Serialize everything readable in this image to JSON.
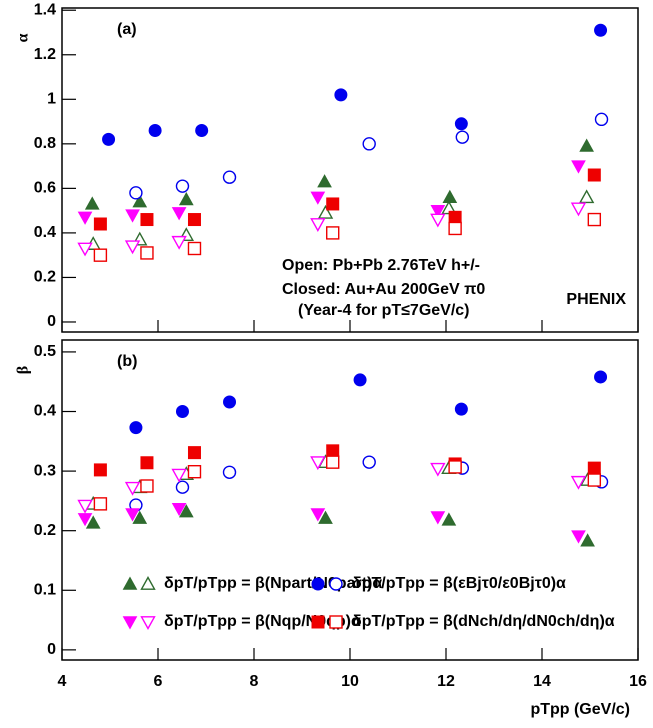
{
  "chart_data": [
    {
      "type": "scatter",
      "panel_label": "(a)",
      "ylabel": "α",
      "xlim": [
        4,
        16
      ],
      "xticks": [
        4,
        6,
        8,
        10,
        12,
        14,
        16
      ],
      "ylim": [
        -0.045,
        1.41
      ],
      "yticks": [
        0,
        0.2,
        0.4,
        0.6,
        0.8,
        1,
        1.2,
        1.4
      ],
      "annotations": [
        "Open: Pb+Pb 2.76TeV h+/-",
        "Closed: Au+Au 200GeV π0",
        "(Year-4 for pT≤7GeV/c)"
      ],
      "watermark": "PHENIX",
      "watermark_color": "#ee0000",
      "series": [
        {
          "color": "#2f6b2f",
          "marker": "triangle-up",
          "x": [
            4.63,
            5.62,
            6.59,
            9.47,
            12.08,
            14.93
          ],
          "values": [
            0.53,
            0.54,
            0.55,
            0.63,
            0.56,
            0.79
          ],
          "open_x": [
            4.65,
            5.62,
            6.59,
            9.49,
            12.06,
            14.93
          ],
          "open_values": [
            0.35,
            0.37,
            0.39,
            0.49,
            0.51,
            0.56
          ]
        },
        {
          "color": "#0000ee",
          "marker": "circle",
          "x": [
            4.97,
            5.94,
            6.91,
            9.81,
            12.32,
            15.22
          ],
          "values": [
            0.82,
            0.86,
            0.86,
            1.02,
            0.89,
            1.31
          ],
          "open_x": [
            5.54,
            6.51,
            7.49,
            10.4,
            12.34,
            15.24
          ],
          "open_values": [
            0.58,
            0.61,
            0.65,
            0.8,
            0.83,
            0.91
          ]
        },
        {
          "color": "#ff00ff",
          "marker": "triangle-down",
          "x": [
            4.48,
            5.47,
            6.44,
            9.33,
            11.83,
            14.76
          ],
          "values": [
            0.47,
            0.48,
            0.49,
            0.56,
            0.5,
            0.7
          ],
          "open_x": [
            4.48,
            5.47,
            6.44,
            9.33,
            11.83,
            14.76
          ],
          "open_values": [
            0.33,
            0.34,
            0.36,
            0.44,
            0.46,
            0.51
          ]
        },
        {
          "color": "#ee0000",
          "marker": "square",
          "x": [
            4.8,
            5.77,
            6.76,
            9.64,
            12.19,
            15.09
          ],
          "values": [
            0.44,
            0.46,
            0.46,
            0.53,
            0.47,
            0.66
          ],
          "open_x": [
            4.8,
            5.77,
            6.76,
            9.64,
            12.19,
            15.09
          ],
          "open_values": [
            0.3,
            0.31,
            0.33,
            0.4,
            0.42,
            0.46
          ]
        }
      ]
    },
    {
      "type": "scatter",
      "panel_label": "(b)",
      "ylabel": "β",
      "xlabel": "pTpp (GeV/c)",
      "xlim": [
        4,
        16
      ],
      "xticks": [
        4,
        6,
        8,
        10,
        12,
        14,
        16
      ],
      "ylim": [
        -0.017,
        0.52
      ],
      "yticks": [
        0,
        0.1,
        0.2,
        0.3,
        0.4,
        0.5
      ],
      "series": [
        {
          "name": "δpT/pTpp = β(Npart/N0part)α",
          "color": "#2f6b2f",
          "marker": "triangle-up",
          "x": [
            4.65,
            5.62,
            6.59,
            9.49,
            12.06,
            14.95
          ],
          "values": [
            0.213,
            0.221,
            0.232,
            0.221,
            0.218,
            0.183
          ],
          "open_x": [
            4.65,
            5.62,
            6.59,
            9.49,
            12.06,
            14.95
          ],
          "open_values": [
            0.245,
            0.273,
            0.295,
            0.315,
            0.305,
            0.285
          ]
        },
        {
          "name": "δpT/pTpp = β(εBjτ0/ε0Bjτ0)α",
          "color": "#0000ee",
          "marker": "circle",
          "x": [
            5.54,
            6.51,
            7.49,
            10.21,
            12.32,
            15.22
          ],
          "values": [
            0.373,
            0.4,
            0.416,
            0.453,
            0.404,
            0.458
          ],
          "open_x": [
            5.54,
            6.51,
            7.49,
            10.4,
            12.34,
            15.24
          ],
          "open_values": [
            0.243,
            0.273,
            0.298,
            0.315,
            0.305,
            0.282
          ]
        },
        {
          "name": "δpT/pTpp = β(Nqp/N0qp)α",
          "color": "#ff00ff",
          "marker": "triangle-down",
          "x": [
            4.48,
            5.47,
            6.44,
            9.33,
            11.83,
            14.76
          ],
          "values": [
            0.22,
            0.228,
            0.237,
            0.228,
            0.223,
            0.191
          ],
          "open_x": [
            4.48,
            5.47,
            6.44,
            9.33,
            11.83,
            14.76
          ],
          "open_values": [
            0.242,
            0.272,
            0.294,
            0.315,
            0.304,
            0.282
          ]
        },
        {
          "name": "δpT/pTpp = β(dNch/dη/dN0ch/dη)α",
          "color": "#ee0000",
          "marker": "square",
          "x": [
            4.8,
            5.77,
            6.76,
            9.64,
            12.19,
            15.09
          ],
          "values": [
            0.302,
            0.314,
            0.331,
            0.334,
            0.312,
            0.305
          ],
          "open_x": [
            4.8,
            5.77,
            6.76,
            9.64,
            12.19,
            15.09
          ],
          "open_values": [
            0.245,
            0.275,
            0.299,
            0.315,
            0.307,
            0.285
          ]
        }
      ]
    }
  ]
}
